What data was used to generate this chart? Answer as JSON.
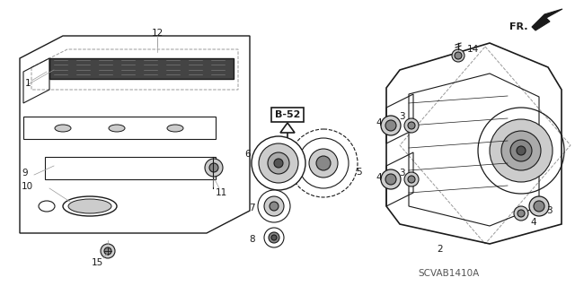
{
  "diagram_code": "SCVAB1410A",
  "bg_color": "#ffffff",
  "line_color": "#1a1a1a",
  "gray_color": "#999999",
  "dark_gray": "#555555",
  "mid_gray": "#888888",
  "light_gray": "#cccccc",
  "figsize": [
    6.4,
    3.19
  ],
  "dpi": 100,
  "parts": {
    "B52_label": "B-52",
    "FR_label": "FR.",
    "part_labels": [
      "1",
      "2",
      "3",
      "3",
      "4",
      "4",
      "4",
      "5",
      "6",
      "7",
      "8",
      "9",
      "10",
      "11",
      "12",
      "14",
      "15"
    ]
  }
}
